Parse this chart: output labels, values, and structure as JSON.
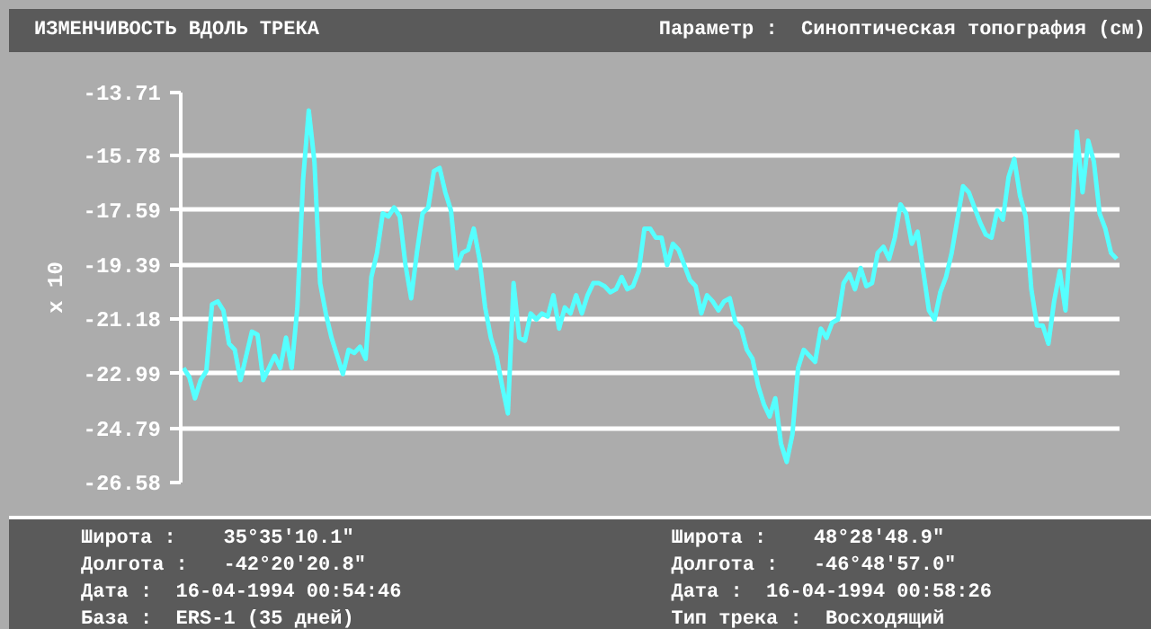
{
  "chart_data": {
    "type": "line",
    "title": "ИЗМЕНЧИВОСТЬ ВДОЛЬ ТРЕКА",
    "subtitle": "Параметр :  Синоптическая топография (см)",
    "ylabel": "x 10",
    "annotations": [
      "Широта :    35°35′10.1″",
      "Долгота :   -42°20′20.8″",
      "Дата :  16-04-1994 00:54:46",
      "База :  ERS-1 (35 дней)",
      "Широта :    48°28′48.9″",
      "Долгота :   -46°48′57.0″",
      "Дата :  16-04-1994 00:58:26",
      "Тип трека :  Восходящий"
    ],
    "categories": [
      null,
      null,
      null,
      null,
      null,
      null,
      null,
      null,
      null,
      null,
      null,
      null,
      null,
      null,
      null,
      null,
      null,
      null,
      null,
      null,
      null,
      null,
      null,
      null,
      null,
      null,
      null,
      null,
      null,
      null,
      null,
      null,
      null,
      null,
      null,
      null,
      null,
      null,
      null,
      null,
      null,
      null,
      null,
      null,
      null,
      null,
      null,
      null,
      null,
      null,
      null,
      null,
      null,
      null,
      null,
      null,
      null,
      null,
      null,
      null,
      null,
      null,
      null,
      null,
      null,
      null,
      null,
      null,
      null,
      null,
      null,
      null,
      null,
      null,
      null,
      null,
      null,
      null,
      null,
      null,
      null,
      null,
      null,
      null,
      null,
      null,
      null,
      null,
      null,
      null,
      null,
      null,
      null,
      null,
      null,
      null,
      null,
      null,
      null,
      null,
      null,
      null,
      null,
      null,
      null,
      null,
      null,
      null,
      null,
      null,
      null,
      null,
      null,
      null,
      null,
      null,
      null,
      null,
      null,
      null,
      null,
      null,
      null,
      null,
      null,
      null,
      null,
      null,
      null,
      null,
      null,
      null,
      null,
      null,
      null,
      null,
      null,
      null,
      null,
      null,
      null,
      null,
      null,
      null,
      null,
      null,
      null,
      null,
      null,
      null,
      null,
      null,
      null,
      null,
      null,
      null,
      null,
      null,
      null,
      null,
      null,
      null,
      null,
      null,
      null
    ],
    "series": [
      {
        "color": "#55ffff",
        "values": [
          -22.8,
          -23.1,
          -23.8,
          -23.2,
          -22.9,
          -20.7,
          -20.6,
          -20.9,
          -22.0,
          -22.2,
          -23.2,
          -22.4,
          -21.6,
          -21.7,
          -23.2,
          -22.8,
          -22.4,
          -22.8,
          -21.8,
          -22.8,
          -20.8,
          -16.6,
          -14.3,
          -16.0,
          -20.0,
          -21.0,
          -21.8,
          -22.4,
          -23.0,
          -22.2,
          -22.3,
          -22.1,
          -22.5,
          -19.8,
          -19.0,
          -17.7,
          -17.8,
          -17.5,
          -17.8,
          -19.4,
          -20.5,
          -19.0,
          -17.7,
          -17.5,
          -16.3,
          -16.2,
          -17.0,
          -17.6,
          -19.5,
          -19.0,
          -18.9,
          -18.2,
          -19.2,
          -20.8,
          -21.8,
          -22.4,
          -23.4,
          -24.3,
          -20.0,
          -21.8,
          -21.9,
          -21.0,
          -21.2,
          -21.0,
          -21.1,
          -20.4,
          -21.5,
          -20.8,
          -21.0,
          -20.4,
          -21.0,
          -20.4,
          -20.0,
          -20.0,
          -20.1,
          -20.3,
          -20.2,
          -19.8,
          -20.2,
          -20.1,
          -19.6,
          -18.2,
          -18.2,
          -18.5,
          -18.5,
          -19.4,
          -18.7,
          -18.9,
          -19.4,
          -19.9,
          -20.1,
          -21.0,
          -20.4,
          -20.6,
          -20.9,
          -20.6,
          -20.5,
          -21.3,
          -21.5,
          -22.2,
          -22.5,
          -23.4,
          -24.0,
          -24.4,
          -23.8,
          -25.3,
          -25.9,
          -25.0,
          -22.8,
          -22.2,
          -22.4,
          -22.6,
          -21.5,
          -21.8,
          -21.3,
          -21.2,
          -20.0,
          -19.7,
          -20.2,
          -19.5,
          -20.1,
          -20.0,
          -19.0,
          -18.8,
          -19.2,
          -18.5,
          -17.4,
          -17.7,
          -18.7,
          -18.3,
          -19.6,
          -20.9,
          -21.2,
          -20.3,
          -19.8,
          -19.0,
          -17.9,
          -16.8,
          -17.0,
          -17.5,
          -18.0,
          -18.4,
          -18.5,
          -17.6,
          -17.9,
          -16.5,
          -15.9,
          -17.1,
          -17.8,
          -20.2,
          -21.4,
          -21.4,
          -22.0,
          -20.6,
          -19.6,
          -20.9,
          -18.2,
          -15.0,
          -17.0,
          -15.3,
          -16.0,
          -17.7,
          -18.2,
          -19.0,
          -19.2
        ]
      }
    ],
    "ylim": [
      -26.58,
      -13.71
    ],
    "yticks": [
      -13.71,
      -15.78,
      -17.59,
      -19.39,
      -21.18,
      -22.99,
      -24.79,
      -26.58
    ],
    "grid": "y",
    "tick_labels": "y"
  }
}
